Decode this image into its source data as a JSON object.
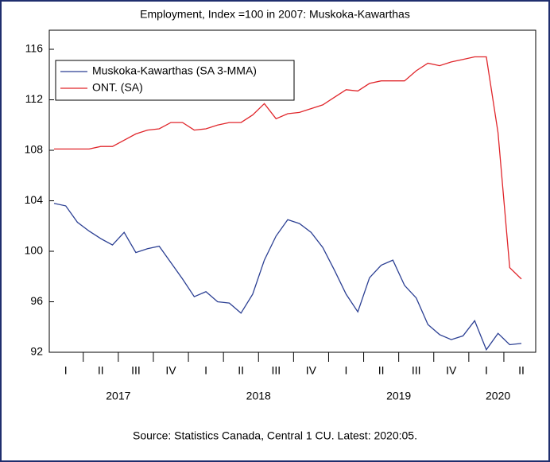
{
  "chart_data": {
    "type": "line",
    "title": "Employment, Index =100 in 2007: Muskoka-Kawarthas",
    "source": "Source: Statistics Canada, Central 1 CU. Latest: 2020:05.",
    "categories": [
      null,
      "I",
      null,
      null,
      "II",
      null,
      null,
      "III",
      null,
      null,
      "IV",
      null,
      null,
      "I",
      null,
      null,
      "II",
      null,
      null,
      "III",
      null,
      null,
      "IV",
      null,
      null,
      "I",
      null,
      null,
      "II",
      null,
      null,
      "III",
      null,
      null,
      "IV",
      null,
      null,
      "I",
      null,
      null,
      "II"
    ],
    "year_labels": [
      "2017",
      "2018",
      "2019",
      "2020"
    ],
    "ylim": [
      92,
      116
    ],
    "yticks": [
      92,
      96,
      100,
      104,
      108,
      112,
      116
    ],
    "legend": "upper left",
    "series": [
      {
        "name": "Muskoka-Kawarthas (SA 3-MMA)",
        "color": "#2b3f93",
        "values": [
          103.8,
          103.6,
          102.3,
          101.6,
          101.0,
          100.5,
          101.5,
          99.9,
          100.2,
          100.4,
          99.1,
          97.8,
          96.4,
          96.8,
          96.0,
          95.9,
          95.1,
          96.6,
          99.3,
          101.2,
          102.5,
          102.2,
          101.5,
          100.3,
          98.5,
          96.6,
          95.2,
          97.9,
          98.9,
          99.3,
          97.3,
          96.3,
          94.2,
          93.4,
          93.0,
          93.3,
          94.5,
          92.2,
          93.5,
          92.6,
          92.7
        ]
      },
      {
        "name": "ONT. (SA)",
        "color": "#e0262b",
        "values": [
          108.1,
          108.1,
          108.1,
          108.1,
          108.3,
          108.3,
          108.8,
          109.3,
          109.6,
          109.7,
          110.2,
          110.2,
          109.6,
          109.7,
          110.0,
          110.2,
          110.2,
          110.8,
          111.7,
          110.5,
          110.9,
          111.0,
          111.3,
          111.6,
          112.2,
          112.8,
          112.7,
          113.3,
          113.5,
          113.5,
          113.5,
          114.3,
          114.9,
          114.7,
          115.0,
          115.2,
          115.4,
          115.4,
          109.4,
          98.7,
          97.8
        ]
      }
    ]
  }
}
